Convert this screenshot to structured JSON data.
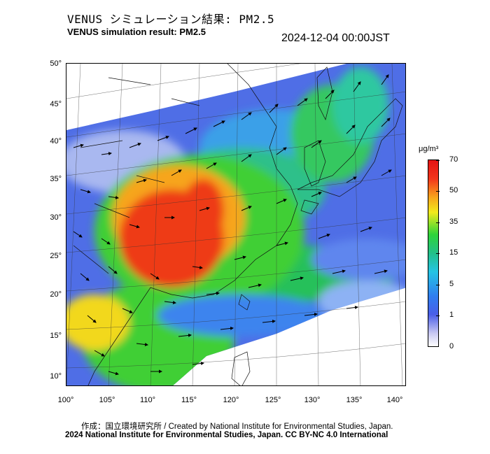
{
  "title_jp": "VENUS シミュレーション結果: PM2.5",
  "title_en": "VENUS simulation result: PM2.5",
  "timestamp": "2024-12-04 00:00JST",
  "map": {
    "lat_ticks": [
      "50°",
      "45°",
      "40°",
      "35°",
      "30°",
      "25°",
      "20°",
      "15°",
      "10°"
    ],
    "lon_ticks": [
      "100°",
      "105°",
      "110°",
      "115°",
      "120°",
      "125°",
      "130°",
      "135°",
      "140°"
    ]
  },
  "colorbar": {
    "unit": "μg/m³",
    "labels": [
      "70",
      "50",
      "35",
      "15",
      "5",
      "1",
      "0"
    ],
    "colors": [
      "#e41414",
      "#f7a51c",
      "#f2ea1c",
      "#2ed43a",
      "#24c4e4",
      "#4a5ee8",
      "#ffffff"
    ]
  },
  "credit_jp": "作成：国立環境研究所 / Created by National Institute for Environmental Studies, Japan.",
  "credit_en": "2024 National Institute for Environmental Studies, Japan. CC BY-NC 4.0 International"
}
